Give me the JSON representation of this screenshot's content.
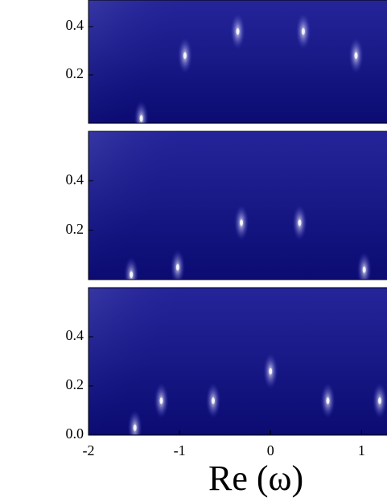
{
  "chart_data": [
    {
      "type": "heatmap",
      "xlim": [
        -2,
        1.28
      ],
      "ylim": [
        0,
        0.51
      ],
      "yticks": [
        0.2,
        0.4
      ],
      "peak_color": "#ffffff",
      "peaks": {
        "x": [
          -1.42,
          -0.94,
          -0.36,
          0.36,
          0.94
        ],
        "y": [
          0.02,
          0.28,
          0.38,
          0.38,
          0.28
        ]
      }
    },
    {
      "type": "heatmap",
      "xlim": [
        -2,
        1.28
      ],
      "ylim": [
        0,
        0.6
      ],
      "yticks": [
        0.2,
        0.4
      ],
      "peak_color": "#ffffff",
      "peaks": {
        "x": [
          -1.53,
          -1.02,
          -0.32,
          0.32,
          1.03
        ],
        "y": [
          0.02,
          0.05,
          0.23,
          0.23,
          0.04
        ]
      }
    },
    {
      "type": "heatmap",
      "xlim": [
        -2,
        1.28
      ],
      "ylim": [
        0,
        0.6
      ],
      "yticks": [
        {
          "value": 0,
          "label": "0.0"
        },
        0.2,
        0.4
      ],
      "xticks": [
        -2,
        -1,
        0,
        1
      ],
      "xlabel": "Re (ω)",
      "peak_color": "#ffffff",
      "peaks": {
        "x": [
          -1.49,
          -1.2,
          -0.63,
          0,
          0.63,
          1.2
        ],
        "y": [
          0.03,
          0.14,
          0.14,
          0.26,
          0.14,
          0.14
        ]
      }
    }
  ]
}
